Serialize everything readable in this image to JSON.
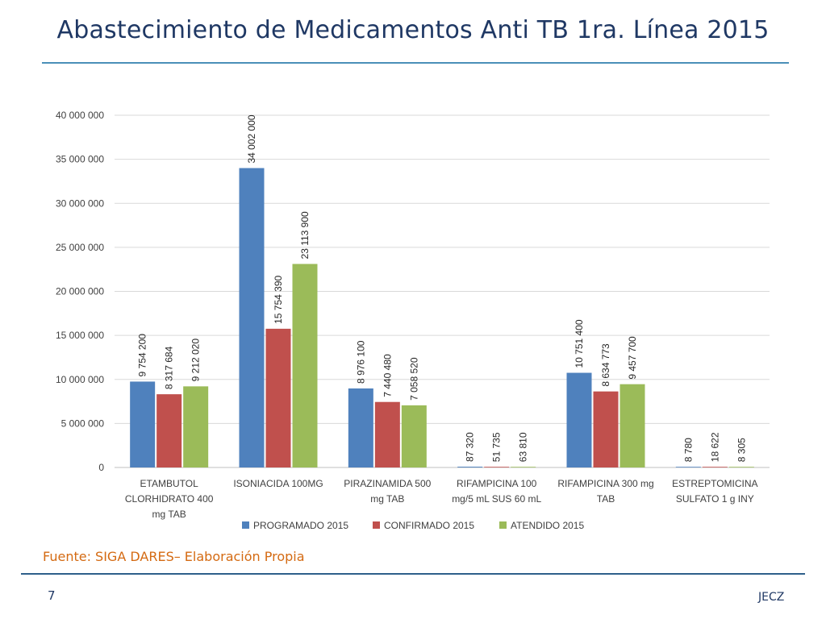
{
  "slide": {
    "title": "Abastecimiento de Medicamentos Anti TB 1ra. Línea 2015",
    "source": "Fuente: SIGA DARES– Elaboración Propia",
    "page_number": "7",
    "author": "JECZ"
  },
  "chart_data": {
    "type": "bar",
    "title": "",
    "xlabel": "",
    "ylabel": "",
    "ylim": [
      0,
      40000000
    ],
    "grid": true,
    "legend_position": "bottom",
    "y_ticks": [
      {
        "value": 0,
        "label": "0"
      },
      {
        "value": 5000000,
        "label": "5 000 000"
      },
      {
        "value": 10000000,
        "label": "10 000 000"
      },
      {
        "value": 15000000,
        "label": "15 000 000"
      },
      {
        "value": 20000000,
        "label": "20 000 000"
      },
      {
        "value": 25000000,
        "label": "25 000 000"
      },
      {
        "value": 30000000,
        "label": "30 000 000"
      },
      {
        "value": 35000000,
        "label": "35 000 000"
      },
      {
        "value": 40000000,
        "label": "40 000 000"
      }
    ],
    "categories": [
      [
        "ETAMBUTOL",
        "CLORHIDRATO 400",
        "mg TAB"
      ],
      [
        "ISONIACIDA 100MG"
      ],
      [
        "PIRAZINAMIDA 500",
        "mg TAB"
      ],
      [
        "RIFAMPICINA 100",
        "mg/5 mL SUS 60 mL"
      ],
      [
        "RIFAMPICINA 300 mg",
        "TAB"
      ],
      [
        "ESTREPTOMICINA",
        "SULFATO 1 g INY"
      ]
    ],
    "series": [
      {
        "name": "PROGRAMADO 2015",
        "color": "#4f81bd",
        "values": [
          9754200,
          34002000,
          8976100,
          87320,
          10751400,
          8780
        ],
        "labels": [
          "9 754 200",
          "34 002 000",
          "8 976 100",
          "87 320",
          "10 751 400",
          "8 780"
        ]
      },
      {
        "name": "CONFIRMADO 2015",
        "color": "#c0504d",
        "values": [
          8317684,
          15754390,
          7440480,
          51735,
          8634773,
          18622
        ],
        "labels": [
          "8 317 684",
          "15 754 390",
          "7 440 480",
          "51 735",
          "8 634 773",
          "18 622"
        ]
      },
      {
        "name": "ATENDIDO 2015",
        "color": "#9bbb59",
        "values": [
          9212020,
          23113900,
          7058520,
          63810,
          9457700,
          8305
        ],
        "labels": [
          "9 212 020",
          "23 113 900",
          "7 058 520",
          "63 810",
          "9 457 700",
          "8 305"
        ]
      }
    ]
  }
}
